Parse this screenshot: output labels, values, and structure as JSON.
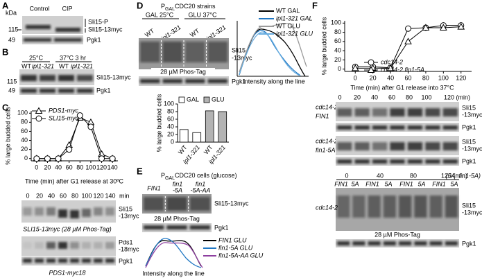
{
  "A": {
    "label": "A",
    "kda": "kDa",
    "lanes": [
      "Control",
      "CIP"
    ],
    "bands": [
      "Sli15-P",
      "Sli15-13myc"
    ],
    "markers": [
      "115",
      "49"
    ],
    "loading": "Pgk1"
  },
  "B": {
    "label": "B",
    "conditions": [
      "25°C",
      "37°C 3 hr"
    ],
    "lanes": [
      "WT",
      "ipl1-321",
      "WT",
      "ipl1-321"
    ],
    "markers": [
      "115",
      "49"
    ],
    "bands": [
      "Sli15-13myc",
      "Pgk1"
    ]
  },
  "C": {
    "label": "C",
    "times": [
      "0",
      "20",
      "40",
      "60",
      "80",
      "100",
      "120",
      "140"
    ],
    "time_unit": "min",
    "band1": [
      "Sli15",
      "-13myc"
    ],
    "caption1": "SLI15-13myc (28 µM Phos-Tag)",
    "band2": [
      "Pds1",
      "-18myc"
    ],
    "loading": "Pgk1",
    "caption2": "PDS1-myc18"
  },
  "D": {
    "label": "D",
    "title": {
      "prefix": "P",
      "subscript": "GAL",
      "rest": "CDC20 strains"
    },
    "conditions": [
      "GAL 25°C",
      "GLU 37°C"
    ],
    "lanes": [
      "WT",
      "ipl1-321",
      "WT",
      "ipl1-321"
    ],
    "band": [
      "Sli15",
      "-13myc"
    ],
    "caption": "28 µM Phos-Tag",
    "loading": "Pgk1",
    "profile_legend": [
      "WT GAL",
      "ipl1-321 GAL",
      "WT GLU",
      "ipl1-321 GLU"
    ],
    "profile_caption": "Intensity along the line"
  },
  "E": {
    "label": "E",
    "title": {
      "prefix": "P",
      "subscript": "GAL",
      "rest": "CDC20 cells (glucose)"
    },
    "lanes": [
      [
        "FIN1"
      ],
      [
        "fin1",
        "-5A"
      ],
      [
        "fin1",
        "-5A-AA"
      ]
    ],
    "band": "Sli15-13myc",
    "caption": "28 µM Phos-Tag",
    "loading": "Pgk1",
    "profile_legend": [
      "FIN1 GLU",
      "fin1-5A GLU",
      "fin1-5A-AA GLU"
    ],
    "profile_caption": "Intensity along the line"
  },
  "F": {
    "label": "F",
    "times": [
      "0",
      "20",
      "40",
      "60",
      "80",
      "100",
      "120 (min)"
    ],
    "strains": [
      [
        "cdc14-2",
        "FIN1"
      ],
      [
        "cdc14-2",
        "fin1-5A"
      ]
    ],
    "band": [
      "Sli15",
      "-13myc"
    ],
    "loading": "Pgk1",
    "times2": [
      "0",
      "40",
      "80",
      "120 (min)"
    ],
    "lanes2": [
      "FIN1",
      "5A",
      "FIN1",
      "5A",
      "FIN1",
      "5A",
      "FIN1",
      "5A"
    ],
    "note": "(5A: fin1-5A)",
    "strain2": "cdc14-2",
    "caption2": "28 µM Phos-Tag"
  },
  "chart_data": [
    {
      "type": "line",
      "ylabel": "% large budded cells",
      "xlabel": "Time (min) after G1 release at 30ºC",
      "x": [
        0,
        20,
        40,
        60,
        80,
        100,
        120,
        140
      ],
      "xlim": [
        -10,
        150
      ],
      "xticks": [
        0,
        20,
        40,
        60,
        80,
        100,
        120,
        140
      ],
      "ylim": [
        -5,
        105
      ],
      "yticks": [
        0,
        20,
        40,
        60,
        80,
        100
      ],
      "series": [
        {
          "name": "PDS1-myc",
          "marker": "triangle",
          "color": "#000000",
          "values": [
            0,
            0,
            0,
            30,
            90,
            80,
            10,
            0
          ]
        },
        {
          "name": "SLI15-myc",
          "marker": "circle",
          "color": "#000000",
          "values": [
            0,
            0,
            0,
            20,
            95,
            70,
            0,
            0
          ]
        }
      ]
    },
    {
      "type": "bar",
      "ylabel": "% large budded cells",
      "categories": [
        "WT",
        "ipl1-321",
        "WT",
        "ipl1-321"
      ],
      "ylim": [
        0,
        100
      ],
      "yticks": [
        0,
        20,
        40,
        60,
        80,
        100
      ],
      "series": [
        {
          "name": "GAL",
          "color": "#ffffff",
          "values": [
            33,
            25,
            null,
            null
          ]
        },
        {
          "name": "GLU",
          "color": "#b3b3b3",
          "values": [
            null,
            null,
            82,
            80
          ]
        }
      ]
    },
    {
      "type": "line",
      "ylabel": "% large budded cells",
      "xlabel": "Time (min) after G1 release into 37°C",
      "x": [
        0,
        20,
        40,
        60,
        80,
        100,
        120
      ],
      "xlim": [
        -12,
        132
      ],
      "xticks": [
        0,
        20,
        40,
        60,
        80,
        100,
        120
      ],
      "ylim": [
        -5,
        105
      ],
      "yticks": [
        0,
        20,
        40,
        60,
        80,
        100
      ],
      "series": [
        {
          "name": "cdc14-2",
          "marker": "circle",
          "color": "#000000",
          "values": [
            5,
            5,
            3,
            88,
            90,
            95,
            95
          ]
        },
        {
          "name": "cdc14-2 fin1-5A",
          "marker": "triangle",
          "color": "#000000",
          "values": [
            2,
            2,
            2,
            60,
            90,
            90,
            92
          ]
        }
      ]
    }
  ]
}
